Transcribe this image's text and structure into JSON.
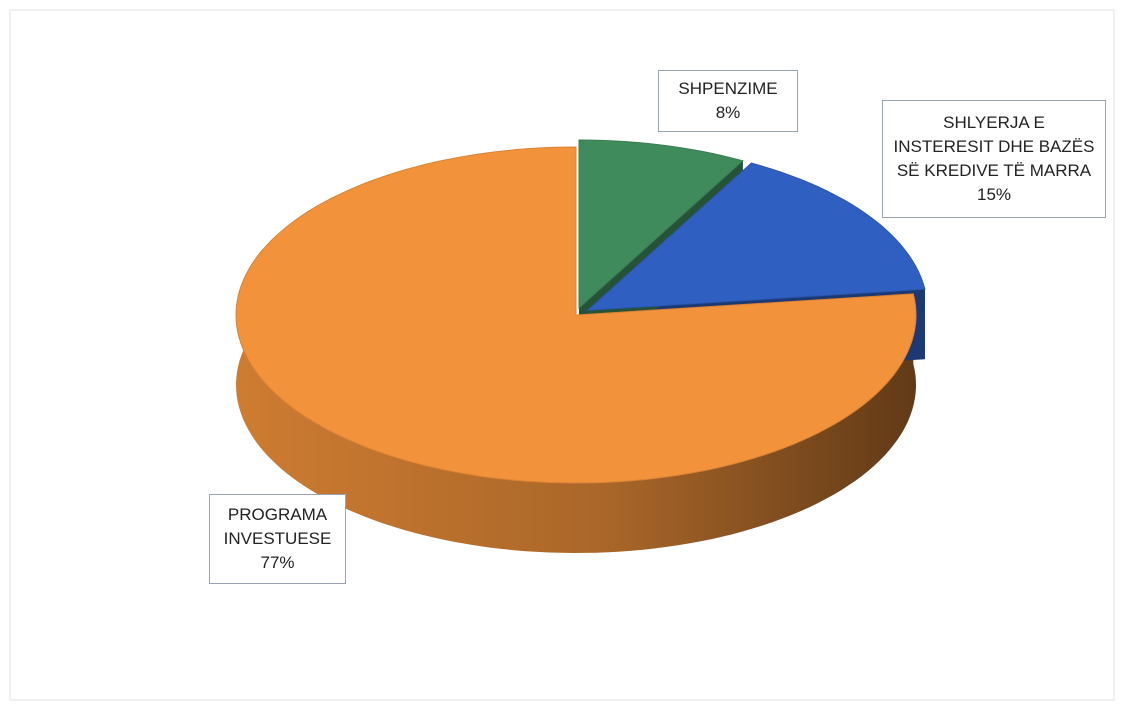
{
  "chart_data": {
    "type": "pie",
    "categories": [
      "SHPENZIME",
      "SHLYERJA E INSTERESIT DHE BAZËS SË KREDIVE TË MARRA",
      "PROGRAMA INVESTUESE"
    ],
    "values": [
      8,
      15,
      77
    ],
    "value_labels": [
      "8%",
      "15%",
      "77%"
    ],
    "colors": [
      "#3f8b5c",
      "#2f5fc0",
      "#f2923a"
    ]
  }
}
